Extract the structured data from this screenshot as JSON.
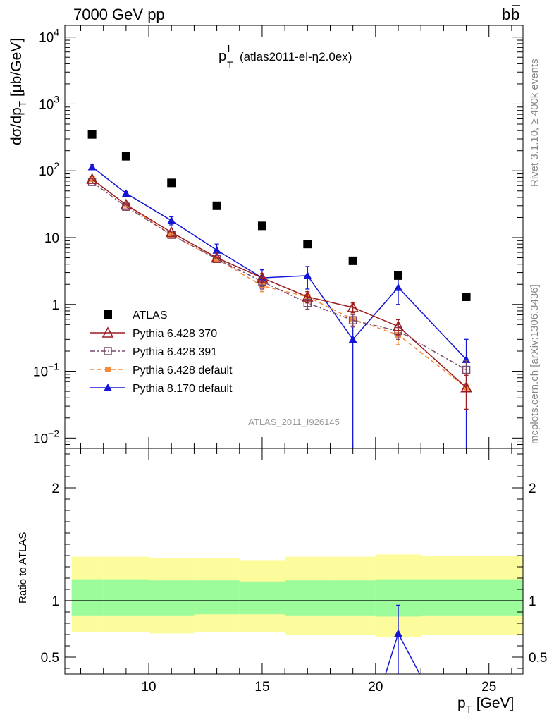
{
  "header": {
    "energy_label": "7000 GeV pp",
    "process_main": "b",
    "process_bar": "b"
  },
  "plot_title": {
    "main": "p",
    "superscript": "l",
    "subscript": "T",
    "suffix": "(atlas2011-el-η2.0ex)"
  },
  "y_axis_label": {
    "part1": "dσ/dp",
    "sub": "T",
    "part2": " [μb/GeV]"
  },
  "x_axis_label": {
    "main": "p",
    "sub": "T",
    "unit": " [GeV]"
  },
  "ratio_axis_label": "Ratio to ATLAS",
  "analysis_id": "ATLAS_2011_I926145",
  "side_texts": {
    "rivet": "Rivet 3.1.10, ≥ 400k events",
    "mcplots": "mcplots.cern.ch [arXiv:1306.3436]"
  },
  "colors": {
    "atlas": "#000000",
    "py6_370": "#9b1c20",
    "py6_391": "#7a4a6e",
    "py6_default": "#f58a3c",
    "py8_default": "#1515d6",
    "band_inner": "#9cfc9c",
    "band_outer": "#fcfc9c"
  },
  "chart_data": [
    {
      "type": "scatter",
      "title": "",
      "xlabel": "p_T [GeV]",
      "ylabel": "dσ/dp_T [μb/GeV]",
      "yscale": "log",
      "xlim": [
        6.3,
        26.5
      ],
      "ylim": [
        0.007,
        15000
      ],
      "y_tick_labels": [
        "10^-2",
        "10^-1",
        "1",
        "10",
        "10^2",
        "10^3",
        "10^4"
      ],
      "legend_position": "lower-left",
      "x": [
        7.5,
        9,
        11,
        13,
        15,
        17,
        19,
        21,
        24
      ],
      "x_bins": [
        [
          7,
          8
        ],
        [
          8,
          10
        ],
        [
          10,
          12
        ],
        [
          12,
          14
        ],
        [
          14,
          16
        ],
        [
          16,
          18
        ],
        [
          18,
          20
        ],
        [
          20,
          22
        ],
        [
          22,
          26
        ]
      ],
      "series": [
        {
          "name": "ATLAS",
          "key": "atlas",
          "style": "data-square",
          "values": [
            350,
            165,
            66,
            30,
            15,
            8,
            4.5,
            2.7,
            1.3
          ]
        },
        {
          "name": "Pythia 6.428 370",
          "key": "py6_370",
          "style": "open-triangle-solid",
          "values": [
            75,
            31,
            12,
            5,
            2.5,
            1.3,
            0.9,
            0.47,
            0.057
          ],
          "err": [
            null,
            null,
            null,
            null,
            0.4,
            0.25,
            0.15,
            0.12,
            0.03
          ]
        },
        {
          "name": "Pythia 6.428 391",
          "key": "py6_391",
          "style": "open-square-dashdot",
          "values": [
            68,
            29,
            11,
            4.8,
            2.2,
            1.05,
            0.58,
            0.4,
            0.105
          ],
          "err": [
            null,
            null,
            null,
            null,
            0.35,
            0.2,
            0.12,
            0.1,
            0.04
          ]
        },
        {
          "name": "Pythia 6.428 default",
          "key": "py6_default",
          "style": "filled-square-dashed",
          "values": [
            75,
            31,
            11,
            4.8,
            1.9,
            1.3,
            0.6,
            0.35,
            0.057
          ],
          "err": [
            null,
            null,
            null,
            null,
            0.35,
            0.25,
            0.12,
            0.1,
            0.03
          ]
        },
        {
          "name": "Pythia 8.170 default",
          "key": "py8_default",
          "style": "filled-triangle-solid",
          "values": [
            115,
            46,
            18,
            6.5,
            2.5,
            2.7,
            0.3,
            1.8,
            0.15
          ],
          "err": [
            10,
            3,
            2.5,
            1.5,
            0.8,
            1.0,
            0.3,
            0.8,
            0.15
          ]
        }
      ]
    },
    {
      "type": "line",
      "title": "",
      "xlabel": "p_T [GeV]",
      "ylabel": "Ratio to ATLAS",
      "xlim": [
        6.3,
        26.5
      ],
      "ylim": [
        0.35,
        2.35
      ],
      "y_tick_labels": [
        "0.5",
        "1",
        "2"
      ],
      "x_tick_labels": [
        "10",
        "15",
        "20",
        "25"
      ],
      "reference_line": 1,
      "band_bins": [
        [
          6.3,
          8
        ],
        [
          8,
          10
        ],
        [
          10,
          12
        ],
        [
          12,
          14
        ],
        [
          14,
          16
        ],
        [
          16,
          18
        ],
        [
          18,
          20
        ],
        [
          20,
          22
        ],
        [
          22,
          26.5
        ]
      ],
      "band_inner": [
        [
          0.87,
          1.19
        ],
        [
          0.87,
          1.19
        ],
        [
          0.87,
          1.18
        ],
        [
          0.88,
          1.18
        ],
        [
          0.88,
          1.17
        ],
        [
          0.87,
          1.18
        ],
        [
          0.87,
          1.18
        ],
        [
          0.86,
          1.19
        ],
        [
          0.87,
          1.19
        ]
      ],
      "band_outer": [
        [
          0.72,
          1.39
        ],
        [
          0.72,
          1.39
        ],
        [
          0.71,
          1.38
        ],
        [
          0.72,
          1.38
        ],
        [
          0.72,
          1.36
        ],
        [
          0.7,
          1.39
        ],
        [
          0.7,
          1.39
        ],
        [
          0.68,
          1.41
        ],
        [
          0.7,
          1.4
        ]
      ],
      "series": [
        {
          "name": "Pythia 8.170 default",
          "key": "py8_default",
          "x": [
            20,
            21,
            22
          ],
          "values": [
            0.067,
            0.71,
            0.33
          ],
          "point": {
            "x": 21,
            "y": 0.71,
            "err": [
              0.47,
              0.96
            ]
          }
        }
      ]
    }
  ]
}
